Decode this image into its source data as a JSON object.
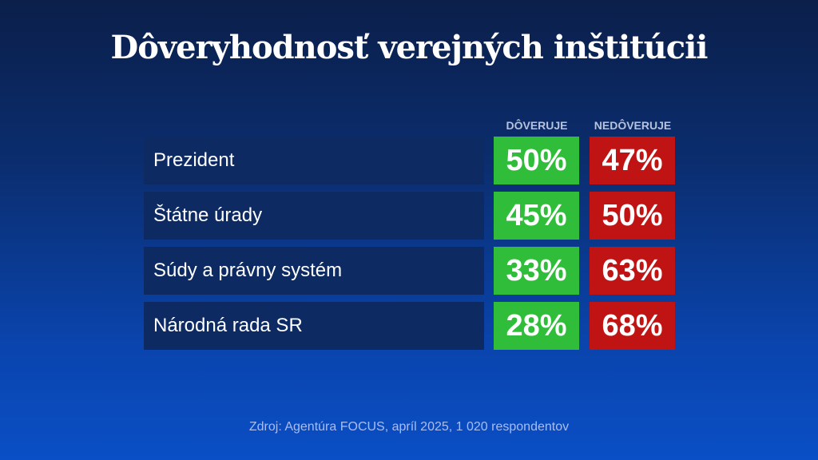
{
  "title": "Dôveryhodnosť verejných inštitúcii",
  "chart_data": {
    "type": "table",
    "columns": [
      "DÔVERUJE",
      "NEDÔVERUJE"
    ],
    "rows": [
      {
        "label": "Prezident",
        "trust": "50%",
        "distrust": "47%"
      },
      {
        "label": "Štátne úrady",
        "trust": "45%",
        "distrust": "50%"
      },
      {
        "label": "Súdy a právny systém",
        "trust": "33%",
        "distrust": "63%"
      },
      {
        "label": "Národná rada SR",
        "trust": "28%",
        "distrust": "68%"
      }
    ],
    "colors": {
      "trust": "#2fbd3a",
      "distrust": "#bf1314",
      "label_bg": "#0d2a63"
    }
  },
  "source": "Zdroj: Agentúra FOCUS, apríl 2025, 1 020 respondentov"
}
